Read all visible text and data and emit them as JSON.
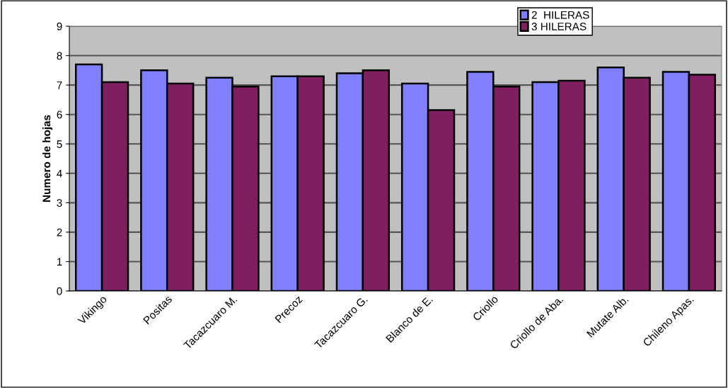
{
  "chart_data": {
    "type": "bar",
    "ylabel": "Numero de hojas",
    "categories": [
      "Vikingo",
      "Positas",
      "Tacazcuaro M.",
      "Precoz",
      "Tacazcuaro G.",
      "Blanco de E.",
      "Criollo",
      "Criollo de Aba.",
      "Mutate Alb.",
      "Chileno Apas."
    ],
    "series": [
      {
        "name": "2  HILERAS",
        "color": "#8080ff",
        "values": [
          7.7,
          7.5,
          7.25,
          7.3,
          7.4,
          7.05,
          7.45,
          7.1,
          7.6,
          7.45
        ]
      },
      {
        "name": "3 HILERAS",
        "color": "#7f1f5f",
        "values": [
          7.1,
          7.05,
          6.95,
          7.3,
          7.5,
          6.15,
          6.95,
          7.15,
          7.25,
          7.35
        ]
      }
    ],
    "ylim": [
      0,
      9
    ],
    "yticks": [
      0,
      1,
      2,
      3,
      4,
      5,
      6,
      7,
      8,
      9
    ],
    "grid": "y",
    "legend": "top right"
  }
}
